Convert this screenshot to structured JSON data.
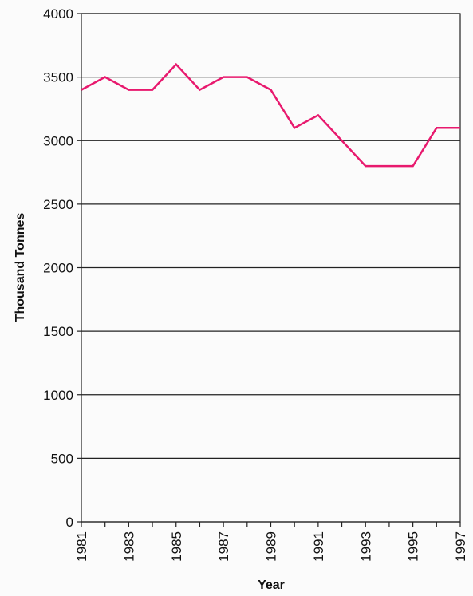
{
  "chart_data": {
    "type": "line",
    "title": "",
    "xlabel": "Year",
    "ylabel": "Thousand Tonnes",
    "xlim": [
      1981,
      1997
    ],
    "ylim": [
      0,
      4000
    ],
    "grid": true,
    "yticks": [
      0,
      500,
      1000,
      1500,
      2000,
      2500,
      3000,
      3500,
      4000
    ],
    "xticks": [
      1981,
      1983,
      1985,
      1987,
      1989,
      1991,
      1993,
      1995,
      1997
    ],
    "line_color": "#e8196e",
    "series": [
      {
        "x": [
          1981,
          1982,
          1983,
          1984,
          1985,
          1986,
          1987,
          1988,
          1989,
          1990,
          1991,
          1992,
          1993,
          1994,
          1995,
          1996,
          1997
        ],
        "values": [
          3400,
          3500,
          3400,
          3400,
          3600,
          3400,
          3500,
          3500,
          3400,
          3100,
          3200,
          3000,
          2800,
          2800,
          2800,
          3100,
          3100
        ]
      }
    ]
  }
}
